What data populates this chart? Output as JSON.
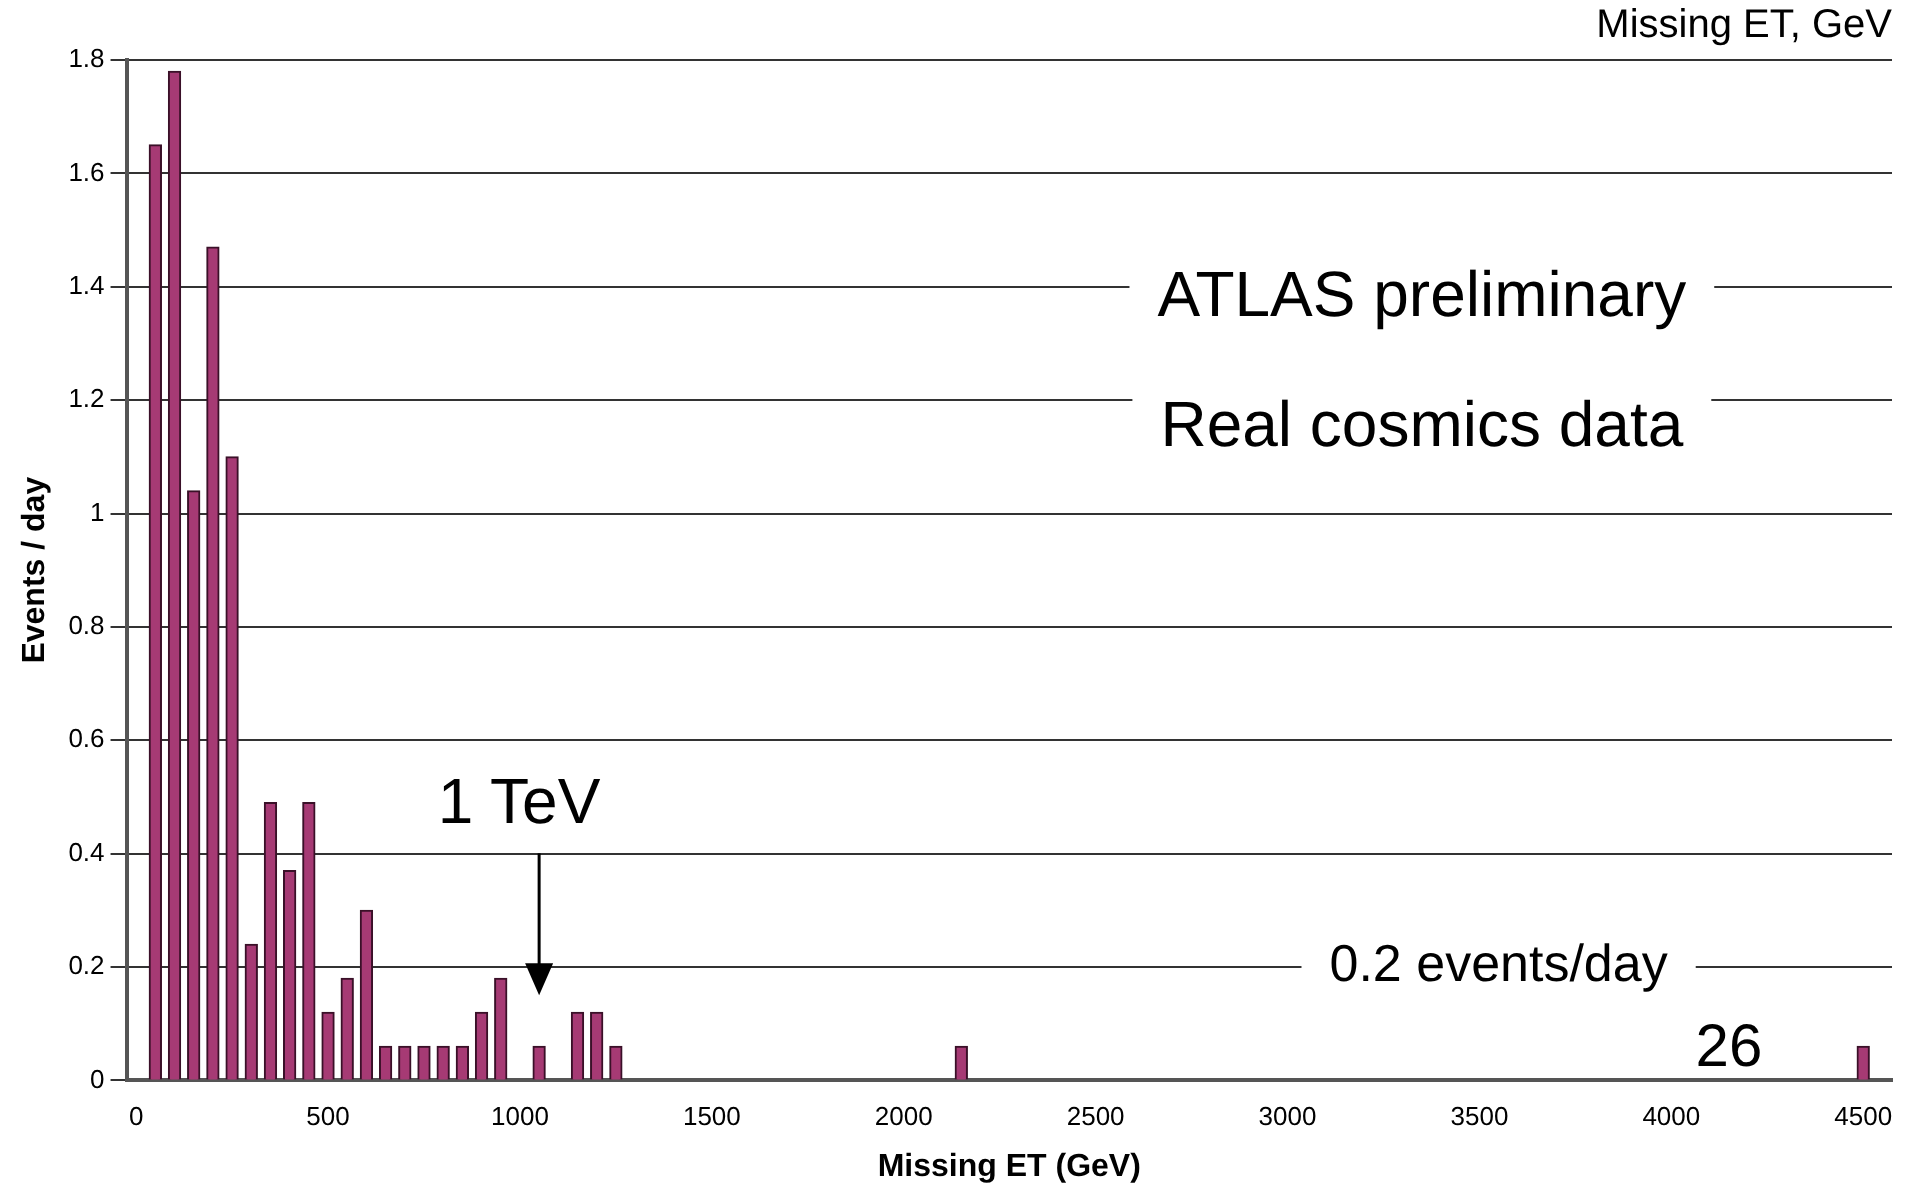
{
  "chart_data": {
    "type": "bar",
    "xlabel": "Missing ET (GeV)",
    "ylabel": "Events / day",
    "x": [
      50,
      100,
      150,
      200,
      250,
      300,
      350,
      400,
      450,
      500,
      550,
      600,
      650,
      700,
      750,
      800,
      850,
      900,
      950,
      1050,
      1150,
      1200,
      1250,
      2150,
      4500
    ],
    "values": [
      1.65,
      1.78,
      1.04,
      1.47,
      1.1,
      0.24,
      0.49,
      0.37,
      0.49,
      0.12,
      0.18,
      0.3,
      0.06,
      0.06,
      0.06,
      0.06,
      0.06,
      0.12,
      0.18,
      0.06,
      0.12,
      0.12,
      0.06,
      0.06,
      0.06
    ],
    "color": "#a63a74",
    "xlim": [
      -25,
      4575
    ],
    "xticks": [
      0,
      500,
      1000,
      1500,
      2000,
      2500,
      3000,
      3500,
      4000,
      4500
    ],
    "ylim": [
      0,
      1.8
    ],
    "yticks": [
      0,
      0.2,
      0.4,
      0.6,
      0.8,
      1,
      1.2,
      1.4,
      1.6,
      1.8
    ],
    "grid": "y",
    "annotations": [
      "Missing ET, GeV",
      "ATLAS preliminary",
      "Real cosmics data",
      "1 TeV",
      "0.2 events/day",
      "26"
    ]
  }
}
